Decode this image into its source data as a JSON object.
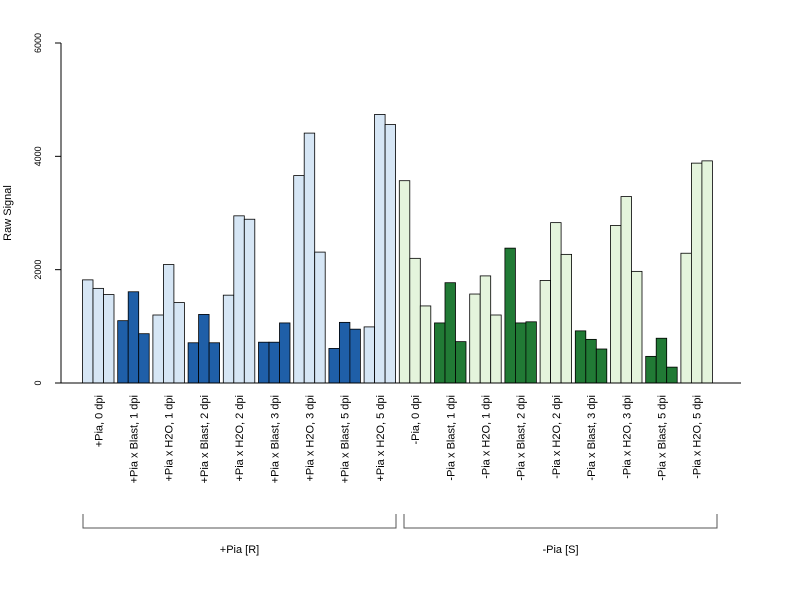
{
  "chart_data": {
    "type": "bar",
    "ylabel": "Raw Signal",
    "ylim": [
      0,
      6000
    ],
    "yticks": [
      0,
      2000,
      4000,
      6000
    ],
    "grid": false,
    "categories": [
      "+Pia, 0 dpi",
      "+Pia x Blast, 1 dpi",
      "+Pia x H2O, 1 dpi",
      "+Pia x Blast, 2 dpi",
      "+Pia x H2O, 2 dpi",
      "+Pia x Blast, 3 dpi",
      "+Pia x H2O, 3 dpi",
      "+Pia x Blast, 5 dpi",
      "+Pia x H2O, 5 dpi",
      "-Pia, 0 dpi",
      "-Pia x Blast, 1 dpi",
      "-Pia x H2O, 1 dpi",
      "-Pia x Blast, 2 dpi",
      "-Pia x H2O, 2 dpi",
      "-Pia x Blast, 3 dpi",
      "-Pia x H2O, 3 dpi",
      "-Pia x Blast, 5 dpi",
      "-Pia x H2O, 5 dpi"
    ],
    "values": [
      [
        1820,
        1670,
        1560
      ],
      [
        1100,
        1610,
        870
      ],
      [
        1200,
        2090,
        1420
      ],
      [
        710,
        1210,
        710
      ],
      [
        1550,
        2950,
        2890
      ],
      [
        720,
        720,
        1060
      ],
      [
        3660,
        4410,
        2310
      ],
      [
        610,
        1070,
        950
      ],
      [
        990,
        4740,
        4560
      ],
      [
        3570,
        2200,
        1360
      ],
      [
        1060,
        1770,
        730
      ],
      [
        1570,
        1890,
        1200
      ],
      [
        2380,
        1060,
        1080
      ],
      [
        1810,
        2830,
        2270
      ],
      [
        920,
        770,
        600
      ],
      [
        2780,
        3290,
        1970
      ],
      [
        470,
        790,
        280
      ],
      [
        2290,
        3880,
        3920
      ]
    ],
    "group_labels": [
      "+Pia [R]",
      "-Pia [S]"
    ],
    "colors": {
      "light_blue": "#d6e6f5",
      "dark_blue": "#1f5fa8",
      "light_green": "#e4f4dc",
      "dark_green": "#217a35",
      "stroke": "#000000"
    }
  }
}
